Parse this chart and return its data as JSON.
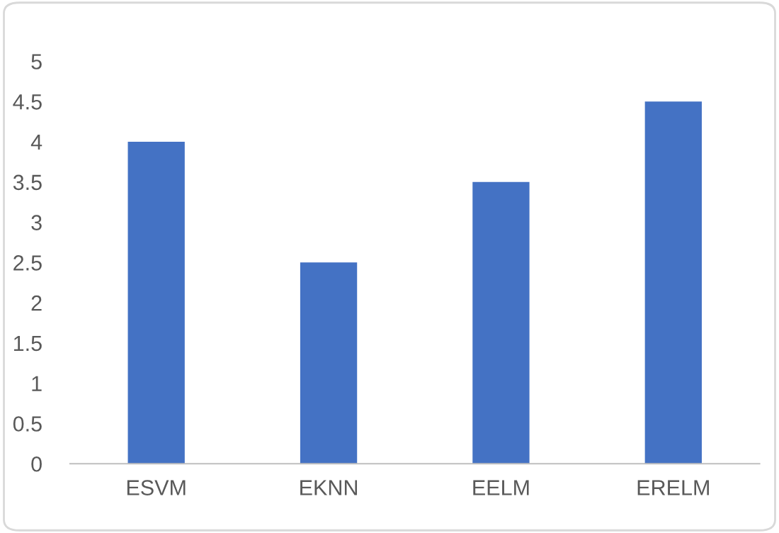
{
  "chart_data": {
    "type": "bar",
    "categories": [
      "ESVM",
      "EKNN",
      "EELM",
      "ERELM"
    ],
    "values": [
      4,
      2.5,
      3.5,
      4.5
    ],
    "color": "#4472c4",
    "ylim": [
      0,
      5
    ],
    "yticks": [
      0,
      0.5,
      1,
      1.5,
      2,
      2.5,
      3,
      3.5,
      4,
      4.5,
      5
    ],
    "grid": false
  }
}
